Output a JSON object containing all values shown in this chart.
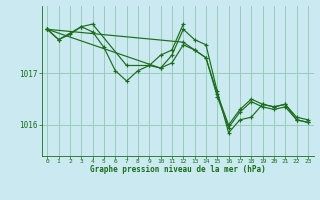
{
  "background_color": "#cbe9f0",
  "grid_color": "#99ccbb",
  "line_color": "#1a6e1a",
  "marker_color": "#1a6e1a",
  "xlabel": "Graphe pression niveau de la mer (hPa)",
  "xlim": [
    -0.5,
    23.5
  ],
  "ylim": [
    1015.4,
    1018.3
  ],
  "yticks": [
    1016,
    1017
  ],
  "xticks": [
    0,
    1,
    2,
    3,
    4,
    5,
    6,
    7,
    8,
    9,
    10,
    11,
    12,
    13,
    14,
    15,
    16,
    17,
    18,
    19,
    20,
    21,
    22,
    23
  ],
  "series": [
    {
      "x": [
        0,
        1,
        2,
        3,
        4,
        7,
        9,
        10,
        11,
        12
      ],
      "y": [
        1017.85,
        1017.65,
        1017.75,
        1017.9,
        1017.95,
        1017.15,
        1017.15,
        1017.35,
        1017.45,
        1017.95
      ]
    },
    {
      "x": [
        0,
        1,
        3,
        4,
        5,
        6,
        7,
        8,
        9,
        10,
        11,
        12,
        13,
        14,
        15,
        16,
        17,
        18,
        19,
        20,
        21,
        22,
        23
      ],
      "y": [
        1017.85,
        1017.65,
        1017.9,
        1017.8,
        1017.5,
        1017.05,
        1016.85,
        1017.05,
        1017.15,
        1017.1,
        1017.35,
        1017.85,
        1017.65,
        1017.55,
        1016.65,
        1015.85,
        1016.1,
        1016.15,
        1016.4,
        1016.35,
        1016.4,
        1016.1,
        1016.05
      ]
    },
    {
      "x": [
        0,
        10,
        11,
        12,
        13,
        14,
        15,
        16,
        17,
        18,
        19,
        20,
        21,
        22,
        23
      ],
      "y": [
        1017.85,
        1017.1,
        1017.2,
        1017.55,
        1017.45,
        1017.3,
        1016.6,
        1016.0,
        1016.3,
        1016.5,
        1016.4,
        1016.35,
        1016.4,
        1016.15,
        1016.1
      ]
    },
    {
      "x": [
        0,
        12,
        13,
        14,
        15,
        16,
        17,
        18,
        19,
        20,
        21,
        22,
        23
      ],
      "y": [
        1017.85,
        1017.6,
        1017.45,
        1017.3,
        1016.55,
        1015.95,
        1016.25,
        1016.45,
        1016.35,
        1016.3,
        1016.35,
        1016.1,
        1016.05
      ]
    }
  ]
}
